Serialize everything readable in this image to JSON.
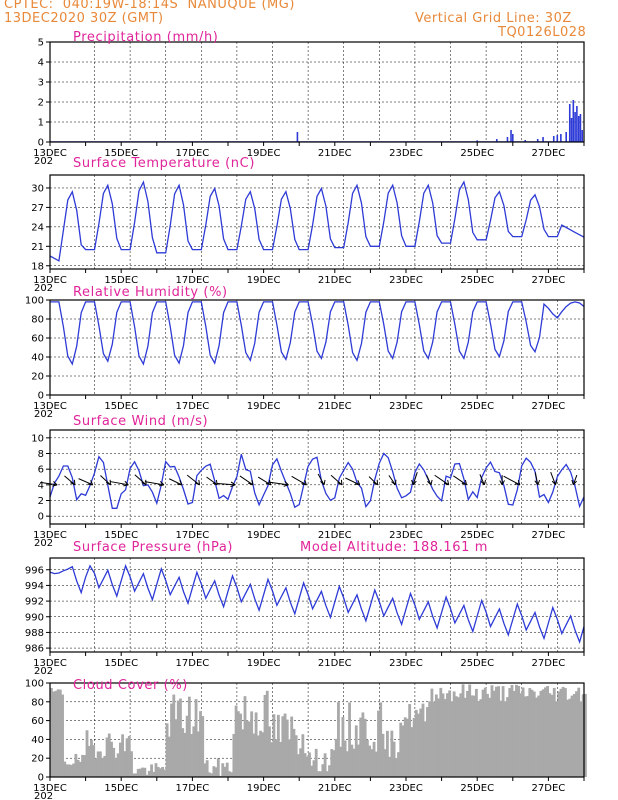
{
  "header": {
    "line1": "CPTEC:  040:19W-18:14S  NANUQUE (MG)",
    "line2": "13DEC2020 30Z (GMT)",
    "right1": "Vertical Grid Line: 30Z",
    "right2": "TQ0126L028"
  },
  "colors": {
    "header": "#e8893a",
    "title": "#e0249a",
    "line": "#2e3bd6",
    "cloud": "#a9a9a9"
  },
  "x_labels": [
    "13DEC",
    "15DEC",
    "17DEC",
    "19DEC",
    "21DEC",
    "23DEC",
    "25DEC",
    "27DEC"
  ],
  "x_year_stub": "202",
  "chart_data": [
    {
      "type": "bar",
      "title": "Precipitation (mm/h)",
      "ylim": [
        0,
        5
      ],
      "yticks": [
        0,
        1,
        2,
        3,
        4,
        5
      ],
      "x_range_days": [
        13,
        28
      ],
      "note": "",
      "events": [
        [
          19.95,
          0.5
        ],
        [
          25.0,
          0.08
        ],
        [
          25.55,
          0.15
        ],
        [
          25.85,
          0.25
        ],
        [
          25.95,
          0.6
        ],
        [
          26.0,
          0.4
        ],
        [
          26.35,
          0.1
        ],
        [
          26.7,
          0.15
        ],
        [
          26.85,
          0.25
        ],
        [
          27.15,
          0.3
        ],
        [
          27.25,
          0.35
        ],
        [
          27.35,
          0.4
        ],
        [
          27.5,
          0.5
        ],
        [
          27.6,
          1.9
        ],
        [
          27.65,
          1.2
        ],
        [
          27.7,
          2.1
        ],
        [
          27.75,
          1.5
        ],
        [
          27.8,
          1.8
        ],
        [
          27.85,
          1.3
        ],
        [
          27.9,
          1.4
        ],
        [
          27.95,
          0.6
        ]
      ]
    },
    {
      "type": "line",
      "title": "Surface Temperature (nC)",
      "ylim": [
        17.5,
        32
      ],
      "yticks": [
        18,
        21,
        24,
        27,
        30
      ],
      "x_range_days": [
        13,
        28
      ],
      "min_value": [
        19.5,
        19.5,
        20.5,
        20.5,
        20.0,
        20.5,
        20.5,
        20.5,
        20.5,
        21.0,
        21.0,
        21.5,
        22.0,
        22.0,
        23.0
      ],
      "max_value": [
        29.5,
        30.5,
        31.0,
        30.5,
        30.0,
        29.5,
        29.5,
        29.5,
        30.5,
        30.5,
        30.5,
        31.0,
        29.5,
        29.0,
        25.0
      ],
      "note": "",
      "series": [
        {
          "values": []
        }
      ]
    },
    {
      "type": "line",
      "title": "Relative Humidity (%)",
      "ylim": [
        0,
        100
      ],
      "yticks": [
        0,
        20,
        40,
        60,
        80,
        100
      ],
      "x_range_days": [
        13,
        28
      ],
      "min_value": [
        32,
        35,
        32,
        33,
        33,
        36,
        37,
        38,
        36,
        38,
        38,
        38,
        40,
        45,
        60
      ],
      "max_value": [
        100,
        98,
        98,
        97,
        97,
        97,
        97,
        97,
        97,
        97,
        96,
        95,
        96,
        98,
        100
      ],
      "series": [
        {
          "values": []
        }
      ]
    },
    {
      "type": "line",
      "title": "Surface Wind (m/s)",
      "ylim": [
        -1,
        11
      ],
      "yticks": [
        0,
        2,
        4,
        6,
        8,
        10
      ],
      "x_range_days": [
        13,
        28
      ],
      "wind_arrows": "direction arrows along series",
      "series": [
        {
          "values": []
        }
      ]
    },
    {
      "type": "line",
      "title": "Surface Pressure (hPa)",
      "annotation": "Model Altitude: 188.161 m",
      "ylim": [
        985.5,
        997.5
      ],
      "yticks": [
        986,
        988,
        990,
        992,
        994,
        996
      ],
      "x_range_days": [
        13,
        28
      ],
      "series": [
        {
          "values": []
        }
      ]
    },
    {
      "type": "area",
      "title": "Cloud Cover (%)",
      "ylim": [
        0,
        100
      ],
      "yticks": [
        0,
        20,
        40,
        60,
        80,
        100
      ],
      "x_range_days": [
        13,
        28
      ],
      "series": [
        {
          "values": []
        }
      ]
    }
  ]
}
